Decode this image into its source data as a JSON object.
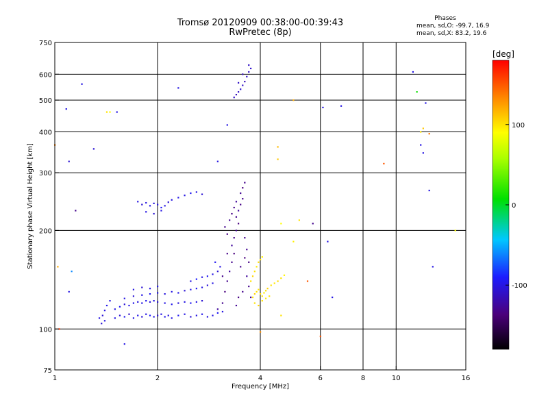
{
  "header": {
    "title_line1": "Tromsø 20120909 00:38:00-00:39:43",
    "title_line2": "RwPretec (8p)"
  },
  "phase_box": {
    "title": "Phases",
    "line_o": "mean, sd,O: -99.7, 16.9",
    "line_x": "mean, sd,X:  83.2, 19.6"
  },
  "colorbar": {
    "unit": "[deg]",
    "range": [
      -180,
      180
    ],
    "ticks": [
      {
        "value": 100,
        "label": "100"
      },
      {
        "value": 0,
        "label": "0"
      },
      {
        "value": -100,
        "label": "-100"
      }
    ]
  },
  "chart_data": {
    "type": "scatter",
    "xlabel": "Frequency [MHz]",
    "ylabel": "Stationary phase Virtual Height [km]",
    "xscale": "log",
    "yscale": "log",
    "xlim": [
      1,
      16
    ],
    "ylim": [
      75,
      750
    ],
    "grid": true,
    "x_ticks": [
      {
        "value": 1,
        "label": "1"
      },
      {
        "value": 2,
        "label": "2"
      },
      {
        "value": 4,
        "label": "4"
      },
      {
        "value": 6,
        "label": "6"
      },
      {
        "value": 8,
        "label": "8"
      },
      {
        "value": 10,
        "label": "10"
      },
      {
        "value": 16,
        "label": "16"
      }
    ],
    "y_ticks": [
      {
        "value": 75,
        "label": "75"
      },
      {
        "value": 100,
        "label": "100"
      },
      {
        "value": 200,
        "label": "200"
      },
      {
        "value": 300,
        "label": "300"
      },
      {
        "value": 400,
        "label": "400"
      },
      {
        "value": 500,
        "label": "500"
      },
      {
        "value": 600,
        "label": "600"
      },
      {
        "value": 750,
        "label": "750"
      }
    ],
    "grid_x": [
      2,
      4,
      6,
      8,
      10
    ],
    "grid_y": [
      100,
      200,
      300,
      400,
      500,
      600
    ],
    "points": [
      [
        1.5,
        108,
        -100
      ],
      [
        1.55,
        110,
        -105
      ],
      [
        1.6,
        109,
        -95
      ],
      [
        1.65,
        111,
        -110
      ],
      [
        1.7,
        108,
        -100
      ],
      [
        1.75,
        110,
        -98
      ],
      [
        1.8,
        109,
        -105
      ],
      [
        1.85,
        111,
        -100
      ],
      [
        1.9,
        110,
        -92
      ],
      [
        1.95,
        109,
        -100
      ],
      [
        2.0,
        110,
        -105
      ],
      [
        2.05,
        111,
        -100
      ],
      [
        2.1,
        109,
        -97
      ],
      [
        2.15,
        110,
        -103
      ],
      [
        2.2,
        108,
        -100
      ],
      [
        2.3,
        110,
        -95
      ],
      [
        2.4,
        111,
        -100
      ],
      [
        2.5,
        109,
        -105
      ],
      [
        2.6,
        110,
        -100
      ],
      [
        2.7,
        111,
        -98
      ],
      [
        2.8,
        109,
        -102
      ],
      [
        2.9,
        110,
        -100
      ],
      [
        3.0,
        112,
        -95
      ],
      [
        3.1,
        113,
        -100
      ],
      [
        1.5,
        115,
        -100
      ],
      [
        1.55,
        117,
        -95
      ],
      [
        1.6,
        119,
        -105
      ],
      [
        1.65,
        118,
        -100
      ],
      [
        1.7,
        120,
        -98
      ],
      [
        1.75,
        121,
        -102
      ],
      [
        1.8,
        120,
        -100
      ],
      [
        1.85,
        122,
        -96
      ],
      [
        1.9,
        121,
        -104
      ],
      [
        1.95,
        122,
        -100
      ],
      [
        2.0,
        121,
        -105
      ],
      [
        2.1,
        120,
        -100
      ],
      [
        2.2,
        119,
        -97
      ],
      [
        2.3,
        120,
        -103
      ],
      [
        2.4,
        121,
        -100
      ],
      [
        2.5,
        120,
        -95
      ],
      [
        2.6,
        121,
        -100
      ],
      [
        2.7,
        122,
        -105
      ],
      [
        1.6,
        124,
        -100
      ],
      [
        1.7,
        126,
        -105
      ],
      [
        1.8,
        127,
        -100
      ],
      [
        1.9,
        128,
        -95
      ],
      [
        2.0,
        129,
        -100
      ],
      [
        2.1,
        128,
        -102
      ],
      [
        2.2,
        130,
        -100
      ],
      [
        2.3,
        129,
        -98
      ],
      [
        2.4,
        131,
        -105
      ],
      [
        2.5,
        132,
        -100
      ],
      [
        2.6,
        133,
        -95
      ],
      [
        2.7,
        134,
        -100
      ],
      [
        2.8,
        136,
        -105
      ],
      [
        2.9,
        138,
        -100
      ],
      [
        1.7,
        132,
        -100
      ],
      [
        1.8,
        134,
        -105
      ],
      [
        1.9,
        133,
        -100
      ],
      [
        2.0,
        135,
        -97
      ],
      [
        2.5,
        140,
        -100
      ],
      [
        2.6,
        142,
        -90
      ],
      [
        2.7,
        144,
        -100
      ],
      [
        2.8,
        145,
        -95
      ],
      [
        2.9,
        147,
        -100
      ],
      [
        3.0,
        150,
        -105
      ],
      [
        3.05,
        155,
        -100
      ],
      [
        2.95,
        160,
        -95
      ],
      [
        1.35,
        108,
        -100
      ],
      [
        1.38,
        110,
        -105
      ],
      [
        1.4,
        114,
        -100
      ],
      [
        1.42,
        118,
        -98
      ],
      [
        1.45,
        122,
        -100
      ],
      [
        1.4,
        106,
        -100
      ],
      [
        1.37,
        104,
        -105
      ],
      [
        3.0,
        115,
        -125
      ],
      [
        3.1,
        120,
        -130
      ],
      [
        3.15,
        130,
        -135
      ],
      [
        3.2,
        140,
        -130
      ],
      [
        3.25,
        150,
        -125
      ],
      [
        3.3,
        160,
        -130
      ],
      [
        3.35,
        170,
        -135
      ],
      [
        3.3,
        180,
        -125
      ],
      [
        3.35,
        190,
        -130
      ],
      [
        3.4,
        200,
        -128
      ],
      [
        3.45,
        210,
        -135
      ],
      [
        3.4,
        220,
        -130
      ],
      [
        3.45,
        230,
        -125
      ],
      [
        3.5,
        240,
        -132
      ],
      [
        3.55,
        250,
        -130
      ],
      [
        3.5,
        260,
        -128
      ],
      [
        3.55,
        270,
        -135
      ],
      [
        3.6,
        280,
        -130
      ],
      [
        3.5,
        155,
        -130
      ],
      [
        3.6,
        165,
        -135
      ],
      [
        3.65,
        145,
        -125
      ],
      [
        3.7,
        135,
        -130
      ],
      [
        3.75,
        125,
        -128
      ],
      [
        3.2,
        195,
        -133
      ],
      [
        3.15,
        205,
        -130
      ],
      [
        3.25,
        215,
        -128
      ],
      [
        3.3,
        225,
        -133
      ],
      [
        3.35,
        235,
        -130
      ],
      [
        3.4,
        245,
        -126
      ],
      [
        3.2,
        170,
        -132
      ],
      [
        3.1,
        145,
        -130
      ],
      [
        3.6,
        190,
        -130
      ],
      [
        3.65,
        175,
        -128
      ],
      [
        3.7,
        160,
        -133
      ],
      [
        3.55,
        130,
        -130
      ],
      [
        3.4,
        118,
        -128
      ],
      [
        3.45,
        125,
        -133
      ],
      [
        3.35,
        510,
        -110
      ],
      [
        3.4,
        520,
        -115
      ],
      [
        3.45,
        530,
        -110
      ],
      [
        3.5,
        540,
        -105
      ],
      [
        3.55,
        555,
        -110
      ],
      [
        3.6,
        570,
        -115
      ],
      [
        3.65,
        590,
        -110
      ],
      [
        3.7,
        610,
        -112
      ],
      [
        3.75,
        625,
        -108
      ],
      [
        3.45,
        565,
        -110
      ],
      [
        3.55,
        600,
        -115
      ],
      [
        3.7,
        640,
        -110
      ],
      [
        1.75,
        245,
        -100
      ],
      [
        1.8,
        240,
        -105
      ],
      [
        1.85,
        243,
        -100
      ],
      [
        1.9,
        238,
        -98
      ],
      [
        1.95,
        242,
        -102
      ],
      [
        2.0,
        240,
        -100
      ],
      [
        2.05,
        235,
        -95
      ],
      [
        2.1,
        238,
        -100
      ],
      [
        2.15,
        244,
        -105
      ],
      [
        2.2,
        248,
        -100
      ],
      [
        2.3,
        252,
        -98
      ],
      [
        2.4,
        256,
        -100
      ],
      [
        2.5,
        260,
        -95
      ],
      [
        2.6,
        262,
        -100
      ],
      [
        2.7,
        258,
        -105
      ],
      [
        1.85,
        228,
        -100
      ],
      [
        1.95,
        225,
        -105
      ],
      [
        2.05,
        230,
        -100
      ],
      [
        3.8,
        125,
        100
      ],
      [
        3.85,
        128,
        105
      ],
      [
        3.9,
        130,
        100
      ],
      [
        3.95,
        132,
        98
      ],
      [
        4.0,
        128,
        102
      ],
      [
        4.05,
        126,
        100
      ],
      [
        4.1,
        129,
        95
      ],
      [
        4.15,
        131,
        100
      ],
      [
        4.2,
        133,
        105
      ],
      [
        4.3,
        136,
        100
      ],
      [
        4.4,
        138,
        98
      ],
      [
        4.5,
        140,
        102
      ],
      [
        4.6,
        143,
        100
      ],
      [
        4.7,
        146,
        95
      ],
      [
        3.85,
        120,
        100
      ],
      [
        3.95,
        118,
        105
      ],
      [
        4.05,
        122,
        100
      ],
      [
        4.15,
        124,
        95
      ],
      [
        4.25,
        126,
        100
      ],
      [
        3.75,
        140,
        100
      ],
      [
        3.8,
        145,
        105
      ],
      [
        3.85,
        150,
        100
      ],
      [
        3.9,
        155,
        98
      ],
      [
        3.95,
        160,
        102
      ],
      [
        4.0,
        163,
        100
      ],
      [
        4.05,
        166,
        95
      ],
      [
        1.08,
        470,
        -100
      ],
      [
        1.1,
        325,
        -105
      ],
      [
        1.1,
        130,
        -100
      ],
      [
        1.12,
        150,
        -60
      ],
      [
        1.15,
        230,
        -130
      ],
      [
        1.2,
        560,
        -100
      ],
      [
        1.3,
        355,
        -105
      ],
      [
        1.42,
        460,
        100
      ],
      [
        1.45,
        460,
        90
      ],
      [
        1.52,
        460,
        -100
      ],
      [
        1.6,
        90,
        -100
      ],
      [
        2.3,
        545,
        -100
      ],
      [
        3.2,
        420,
        -100
      ],
      [
        3.0,
        325,
        -100
      ],
      [
        6.1,
        475,
        -100
      ],
      [
        6.9,
        480,
        -100
      ],
      [
        9.2,
        320,
        150
      ],
      [
        11.2,
        610,
        -100
      ],
      [
        11.5,
        530,
        10
      ],
      [
        11.8,
        365,
        -100
      ],
      [
        12.0,
        345,
        -100
      ],
      [
        12.2,
        490,
        -100
      ],
      [
        12.5,
        265,
        -100
      ],
      [
        12.8,
        155,
        -100
      ],
      [
        12.5,
        395,
        140
      ],
      [
        12.0,
        410,
        110
      ],
      [
        11.8,
        400,
        100
      ],
      [
        4.5,
        330,
        110
      ],
      [
        4.5,
        360,
        115
      ],
      [
        5.0,
        500,
        120
      ],
      [
        4.6,
        110,
        100
      ],
      [
        4.0,
        98,
        130
      ],
      [
        5.2,
        215,
        100
      ],
      [
        5.5,
        140,
        150
      ],
      [
        6.3,
        185,
        -100
      ],
      [
        6.5,
        125,
        -100
      ],
      [
        5.7,
        210,
        -130
      ],
      [
        4.6,
        210,
        90
      ],
      [
        5.0,
        185,
        95
      ],
      [
        6.0,
        95,
        150
      ],
      [
        14.9,
        200,
        90
      ],
      [
        1.02,
        155,
        120
      ],
      [
        1.0,
        365,
        135
      ],
      [
        1.03,
        100,
        160
      ]
    ]
  }
}
